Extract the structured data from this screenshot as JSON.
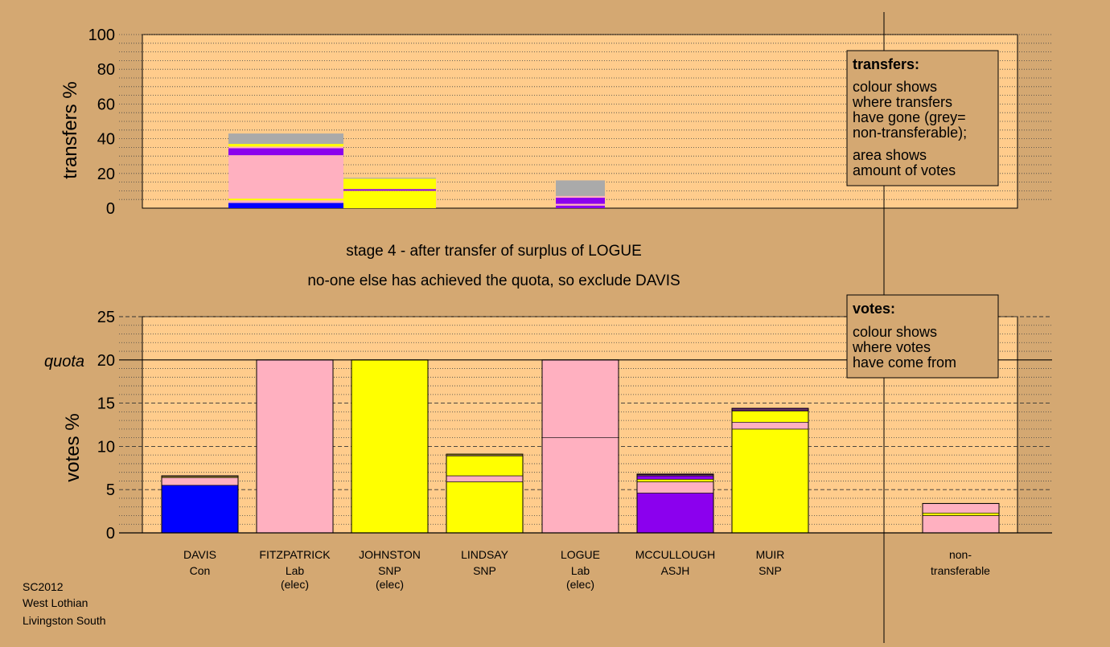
{
  "chart_data": {
    "type": "bar",
    "stage_title": "stage 4 - after transfer of surplus of LOGUE",
    "stage_subtitle": "no-one else has achieved the quota, so exclude DAVIS",
    "colors": {
      "background": "#d4a872",
      "plot_background": "#ffcc8c",
      "Con": "#0000ff",
      "Lab": "#ffb0c0",
      "SNP": "#ffff00",
      "ASJH": "#8b00ee",
      "nontransferable": "#aaaaaa"
    },
    "top_panel": {
      "ylabel": "transfers %",
      "ylim": [
        0,
        100
      ],
      "yticks": [
        "0",
        "20",
        "40",
        "60",
        "80",
        "100"
      ],
      "legend_title": "transfers:",
      "legend_lines": [
        "colour shows",
        "where transfers",
        "have gone (grey=",
        "non-transferable);"
      ],
      "legend_lines2": [
        "area shows",
        "amount of votes"
      ],
      "bars": [
        {
          "source": "FITZPATRICK",
          "segments": [
            {
              "party": "Con",
              "value": 3
            },
            {
              "party": "Lab",
              "value": 1.5
            },
            {
              "party": "SNP",
              "value": 1
            },
            {
              "party": "Lab",
              "value": 25
            },
            {
              "party": "ASJH",
              "value": 4
            },
            {
              "party": "Lab",
              "value": 1
            },
            {
              "party": "SNP",
              "value": 1.5
            },
            {
              "party": "nontransferable",
              "value": 6
            }
          ]
        },
        {
          "source": "JOHNSTON",
          "segments": [
            {
              "party": "SNP",
              "value": 10
            },
            {
              "party": "ASJH",
              "value": 1
            },
            {
              "party": "SNP",
              "value": 6
            },
            {
              "party": "nontransferable",
              "value": 0.5
            }
          ]
        },
        {
          "source": "LOGUE",
          "segments": [
            {
              "party": "ASJH",
              "value": 1.5
            },
            {
              "party": "Lab",
              "value": 1
            },
            {
              "party": "ASJH",
              "value": 3.5
            },
            {
              "party": "Lab",
              "value": 1
            },
            {
              "party": "nontransferable",
              "value": 9
            }
          ]
        }
      ]
    },
    "bottom_panel": {
      "ylabel": "votes %",
      "ylim": [
        0,
        25
      ],
      "yticks": [
        "0",
        "5",
        "10",
        "15",
        "20",
        "25"
      ],
      "quota": 20,
      "quota_label": "quota",
      "legend_title": "votes:",
      "legend_lines": [
        "colour shows",
        "where votes",
        "have come from"
      ],
      "candidates": [
        {
          "name": "DAVIS",
          "party": "Con",
          "note": "",
          "segments": [
            {
              "party": "Con",
              "value": 5.5
            },
            {
              "party": "Lab",
              "value": 0.9
            },
            {
              "party": "SNP",
              "value": 0.1
            },
            {
              "party": "Lab",
              "value": 0.1
            }
          ]
        },
        {
          "name": "FITZPATRICK",
          "party": "Lab",
          "note": "(elec)",
          "segments": [
            {
              "party": "Lab",
              "value": 20
            }
          ]
        },
        {
          "name": "JOHNSTON",
          "party": "SNP",
          "note": "(elec)",
          "segments": [
            {
              "party": "SNP",
              "value": 20
            }
          ]
        },
        {
          "name": "LINDSAY",
          "party": "SNP",
          "note": "",
          "segments": [
            {
              "party": "SNP",
              "value": 5.9
            },
            {
              "party": "Lab",
              "value": 0.7
            },
            {
              "party": "SNP",
              "value": 2.3
            },
            {
              "party": "Lab",
              "value": 0.1
            },
            {
              "party": "SNP",
              "value": 0.1
            }
          ]
        },
        {
          "name": "LOGUE",
          "party": "Lab",
          "note": "(elec)",
          "segments": [
            {
              "party": "Lab",
              "value": 11
            },
            {
              "party": "Lab",
              "value": 9
            }
          ]
        },
        {
          "name": "MCCULLOUGH",
          "party": "ASJH",
          "note": "",
          "segments": [
            {
              "party": "ASJH",
              "value": 4.6
            },
            {
              "party": "Lab",
              "value": 1.3
            },
            {
              "party": "SNP",
              "value": 0.3
            },
            {
              "party": "ASJH",
              "value": 0.4
            },
            {
              "party": "Lab",
              "value": 0.1
            },
            {
              "party": "ASJH",
              "value": 0.1
            }
          ]
        },
        {
          "name": "MUIR",
          "party": "SNP",
          "note": "",
          "segments": [
            {
              "party": "SNP",
              "value": 12
            },
            {
              "party": "Lab",
              "value": 0.8
            },
            {
              "party": "SNP",
              "value": 1.3
            },
            {
              "party": "ASJH",
              "value": 0.1
            },
            {
              "party": "Lab",
              "value": 0.1
            },
            {
              "party": "ASJH",
              "value": 0.1
            }
          ]
        }
      ],
      "nontransferable": {
        "name": "non-",
        "name2": "transferable",
        "segments": [
          {
            "party": "Lab",
            "value": 2
          },
          {
            "party": "SNP",
            "value": 0.3
          },
          {
            "party": "Lab",
            "value": 1.1
          }
        ]
      }
    },
    "footer": [
      "SC2012",
      "West Lothian",
      "Livingston South"
    ]
  }
}
